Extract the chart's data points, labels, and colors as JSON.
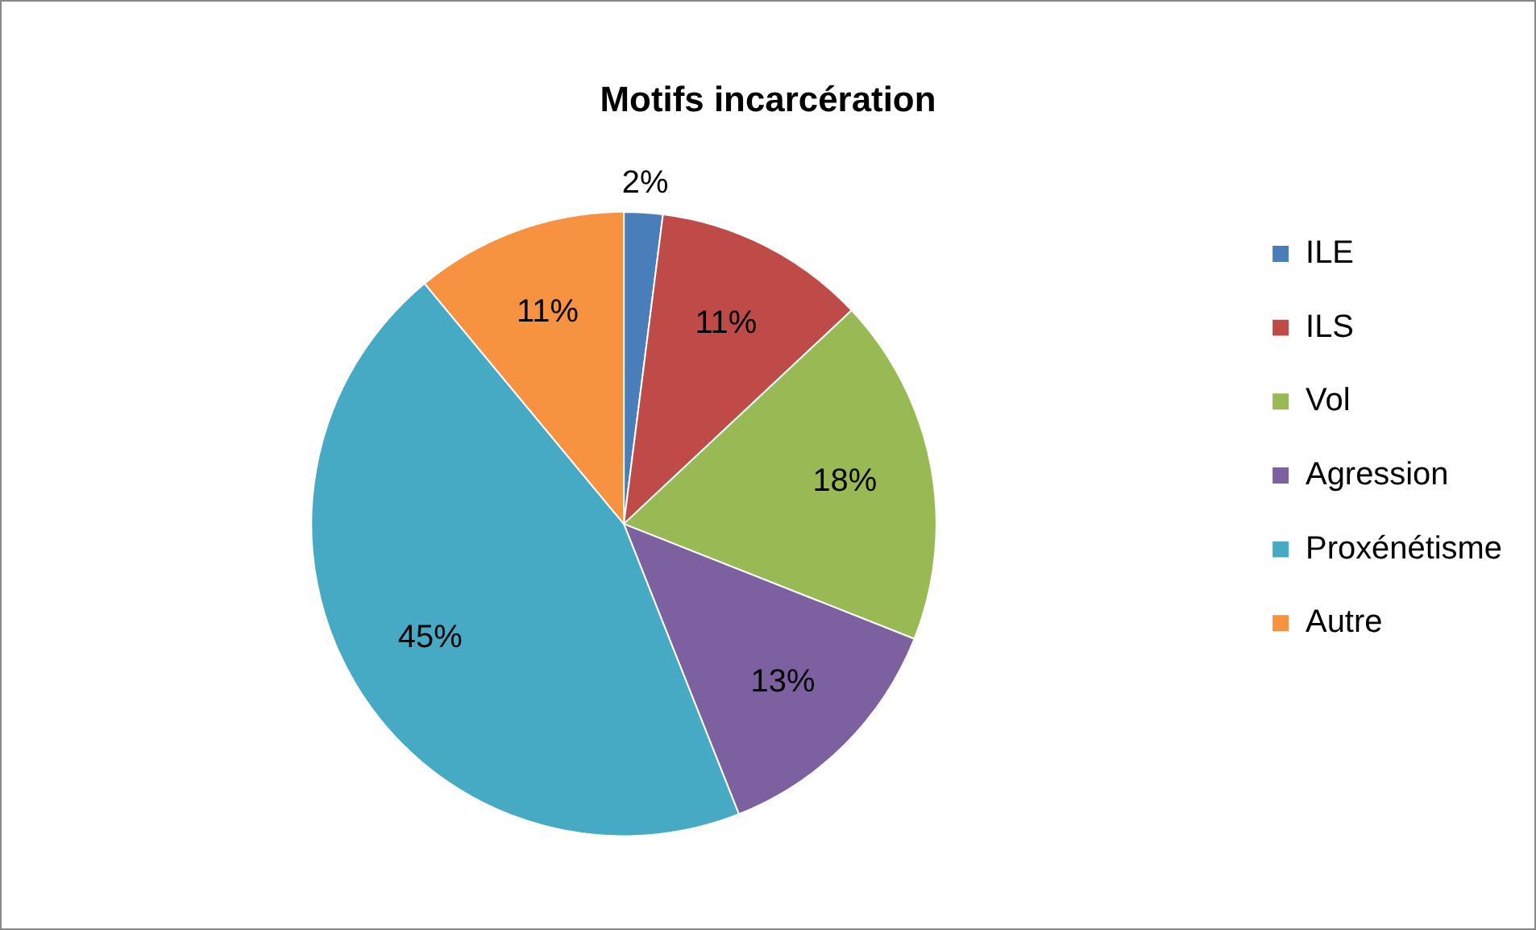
{
  "chart_data": {
    "type": "pie",
    "title": "Motifs incarcération",
    "categories": [
      "ILE",
      "ILS",
      "Vol",
      "Agression",
      "Proxénétisme",
      "Autre"
    ],
    "values": [
      2,
      11,
      18,
      13,
      45,
      11
    ],
    "colors": [
      "#4a7ebb",
      "#be4b48",
      "#98b954",
      "#7d60a0",
      "#46aac5",
      "#f69240"
    ],
    "value_labels": [
      "2%",
      "11%",
      "18%",
      "13%",
      "45%",
      "11%"
    ],
    "legend": "right"
  }
}
